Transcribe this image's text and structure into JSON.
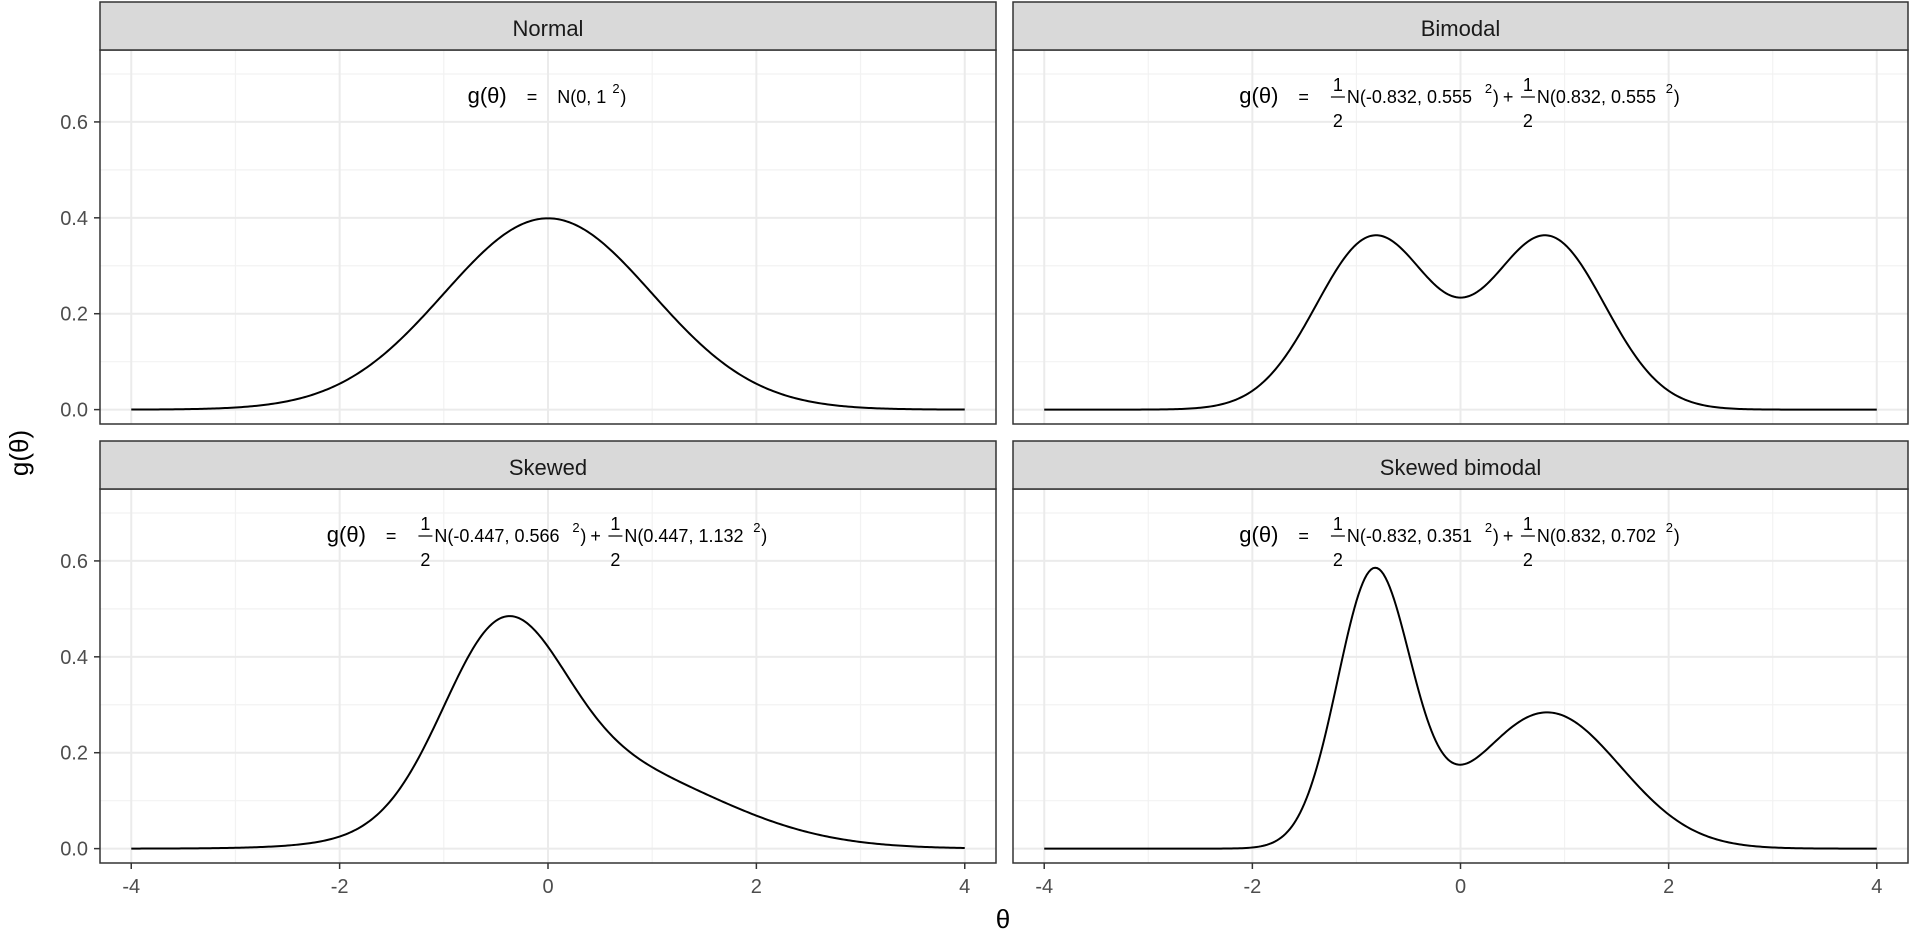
{
  "chart_data": {
    "type": "line",
    "xlabel": "θ",
    "ylabel": "g(θ)",
    "xlim": [
      -4.3,
      4.3
    ],
    "ylim": [
      -0.03,
      0.75
    ],
    "x_ticks": [
      -4,
      -2,
      0,
      2,
      4
    ],
    "x_tick_labels": [
      "-4",
      "-2",
      "0",
      "2",
      "4"
    ],
    "y_ticks": [
      0.0,
      0.2,
      0.4,
      0.6
    ],
    "y_tick_labels": [
      "0.0",
      "0.2",
      "0.4",
      "0.6"
    ],
    "grid": true,
    "theme": "bw",
    "x_range": [
      -4,
      4
    ],
    "panels": [
      {
        "name": "Normal",
        "formula": {
          "lhs": "g(θ)",
          "eq": "=",
          "terms": [
            {
              "has_frac": false,
              "num": "",
              "den": "",
              "base": "N(0, 1",
              "sup": "2",
              "close": ")",
              "join": ""
            }
          ]
        },
        "components": [
          {
            "weight": 1,
            "mean": 0,
            "sd": 1
          }
        ]
      },
      {
        "name": "Bimodal",
        "formula": {
          "lhs": "g(θ)",
          "eq": "=",
          "terms": [
            {
              "has_frac": true,
              "num": "1",
              "den": "2",
              "base": "N(-0.832, 0.555",
              "sup": "2",
              "close": ")",
              "join": "+"
            },
            {
              "has_frac": true,
              "num": "1",
              "den": "2",
              "base": "N(0.832, 0.555",
              "sup": "2",
              "close": ")",
              "join": ""
            }
          ]
        },
        "components": [
          {
            "weight": 0.5,
            "mean": -0.832,
            "sd": 0.555
          },
          {
            "weight": 0.5,
            "mean": 0.832,
            "sd": 0.555
          }
        ]
      },
      {
        "name": "Skewed",
        "formula": {
          "lhs": "g(θ)",
          "eq": "=",
          "terms": [
            {
              "has_frac": true,
              "num": "1",
              "den": "2",
              "base": "N(-0.447, 0.566",
              "sup": "2",
              "close": ")",
              "join": "+"
            },
            {
              "has_frac": true,
              "num": "1",
              "den": "2",
              "base": "N(0.447, 1.132",
              "sup": "2",
              "close": ")",
              "join": ""
            }
          ]
        },
        "components": [
          {
            "weight": 0.5,
            "mean": -0.447,
            "sd": 0.566
          },
          {
            "weight": 0.5,
            "mean": 0.447,
            "sd": 1.132
          }
        ]
      },
      {
        "name": "Skewed bimodal",
        "formula": {
          "lhs": "g(θ)",
          "eq": "=",
          "terms": [
            {
              "has_frac": true,
              "num": "1",
              "den": "2",
              "base": "N(-0.832, 0.351",
              "sup": "2",
              "close": ")",
              "join": "+"
            },
            {
              "has_frac": true,
              "num": "1",
              "den": "2",
              "base": "N(0.832, 0.702",
              "sup": "2",
              "close": ")",
              "join": ""
            }
          ]
        },
        "components": [
          {
            "weight": 0.5,
            "mean": -0.832,
            "sd": 0.351
          },
          {
            "weight": 0.5,
            "mean": 0.832,
            "sd": 0.702
          }
        ]
      }
    ],
    "colors": {
      "strip_fill": "#d9d9d9",
      "panel_border": "#333333",
      "grid_major": "#ebebeb",
      "grid_minor": "#f2f2f2",
      "curve": "#000000"
    }
  }
}
